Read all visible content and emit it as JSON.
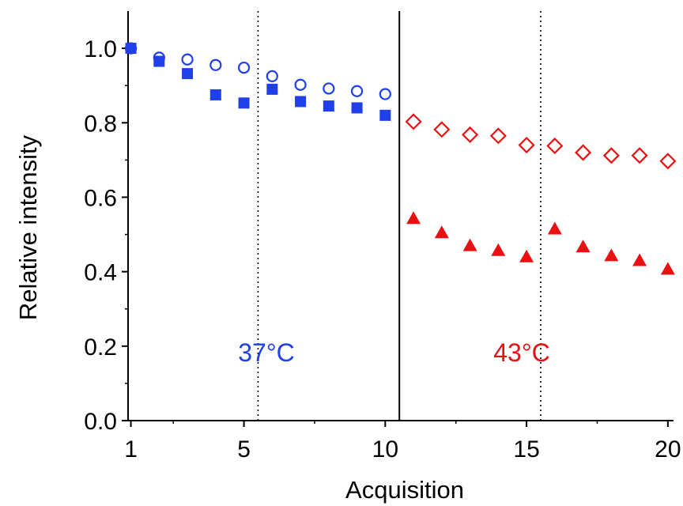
{
  "chart_data": {
    "type": "scatter",
    "title": "",
    "xlabel": "Acquisition",
    "ylabel": "Relative intensity",
    "xlim": [
      0.9,
      20.2
    ],
    "ylim": [
      0,
      1.1
    ],
    "x_ticks": [
      1,
      5,
      10,
      15,
      20
    ],
    "y_ticks": [
      0.0,
      0.2,
      0.4,
      0.6,
      0.8,
      1.0
    ],
    "y_tick_labels": [
      "0.0",
      "0.2",
      "0.4",
      "0.6",
      "0.8",
      "1.0"
    ],
    "grid": false,
    "legend": "none",
    "reference_lines": [
      {
        "x": 5.5,
        "style": "dotted"
      },
      {
        "x": 10.5,
        "style": "solid"
      },
      {
        "x": 15.5,
        "style": "dotted"
      }
    ],
    "annotations": [
      {
        "text": "37°C",
        "color": "#1f3fe8"
      },
      {
        "text": "43°C",
        "color": "#e81010"
      }
    ],
    "series": [
      {
        "marker": "open-circle",
        "color": "#1f3fe8",
        "x": [
          1,
          2,
          3,
          4,
          5,
          6,
          7,
          8,
          9,
          10
        ],
        "y": [
          1.0,
          0.975,
          0.97,
          0.955,
          0.948,
          0.925,
          0.902,
          0.892,
          0.885,
          0.877
        ]
      },
      {
        "marker": "filled-square",
        "color": "#1f3fe8",
        "x": [
          1,
          2,
          3,
          4,
          5,
          6,
          7,
          8,
          9,
          10
        ],
        "y": [
          1.0,
          0.965,
          0.932,
          0.875,
          0.853,
          0.89,
          0.857,
          0.845,
          0.84,
          0.82
        ]
      },
      {
        "marker": "open-diamond",
        "color": "#e81010",
        "x": [
          11,
          12,
          13,
          14,
          15,
          16,
          17,
          18,
          19,
          20
        ],
        "y": [
          0.803,
          0.782,
          0.768,
          0.765,
          0.74,
          0.738,
          0.72,
          0.712,
          0.712,
          0.697
        ]
      },
      {
        "marker": "filled-triangle",
        "color": "#e81010",
        "x": [
          11,
          12,
          13,
          14,
          15,
          16,
          17,
          18,
          19,
          20
        ],
        "y": [
          0.543,
          0.505,
          0.47,
          0.457,
          0.44,
          0.515,
          0.467,
          0.443,
          0.43,
          0.407
        ]
      }
    ]
  }
}
